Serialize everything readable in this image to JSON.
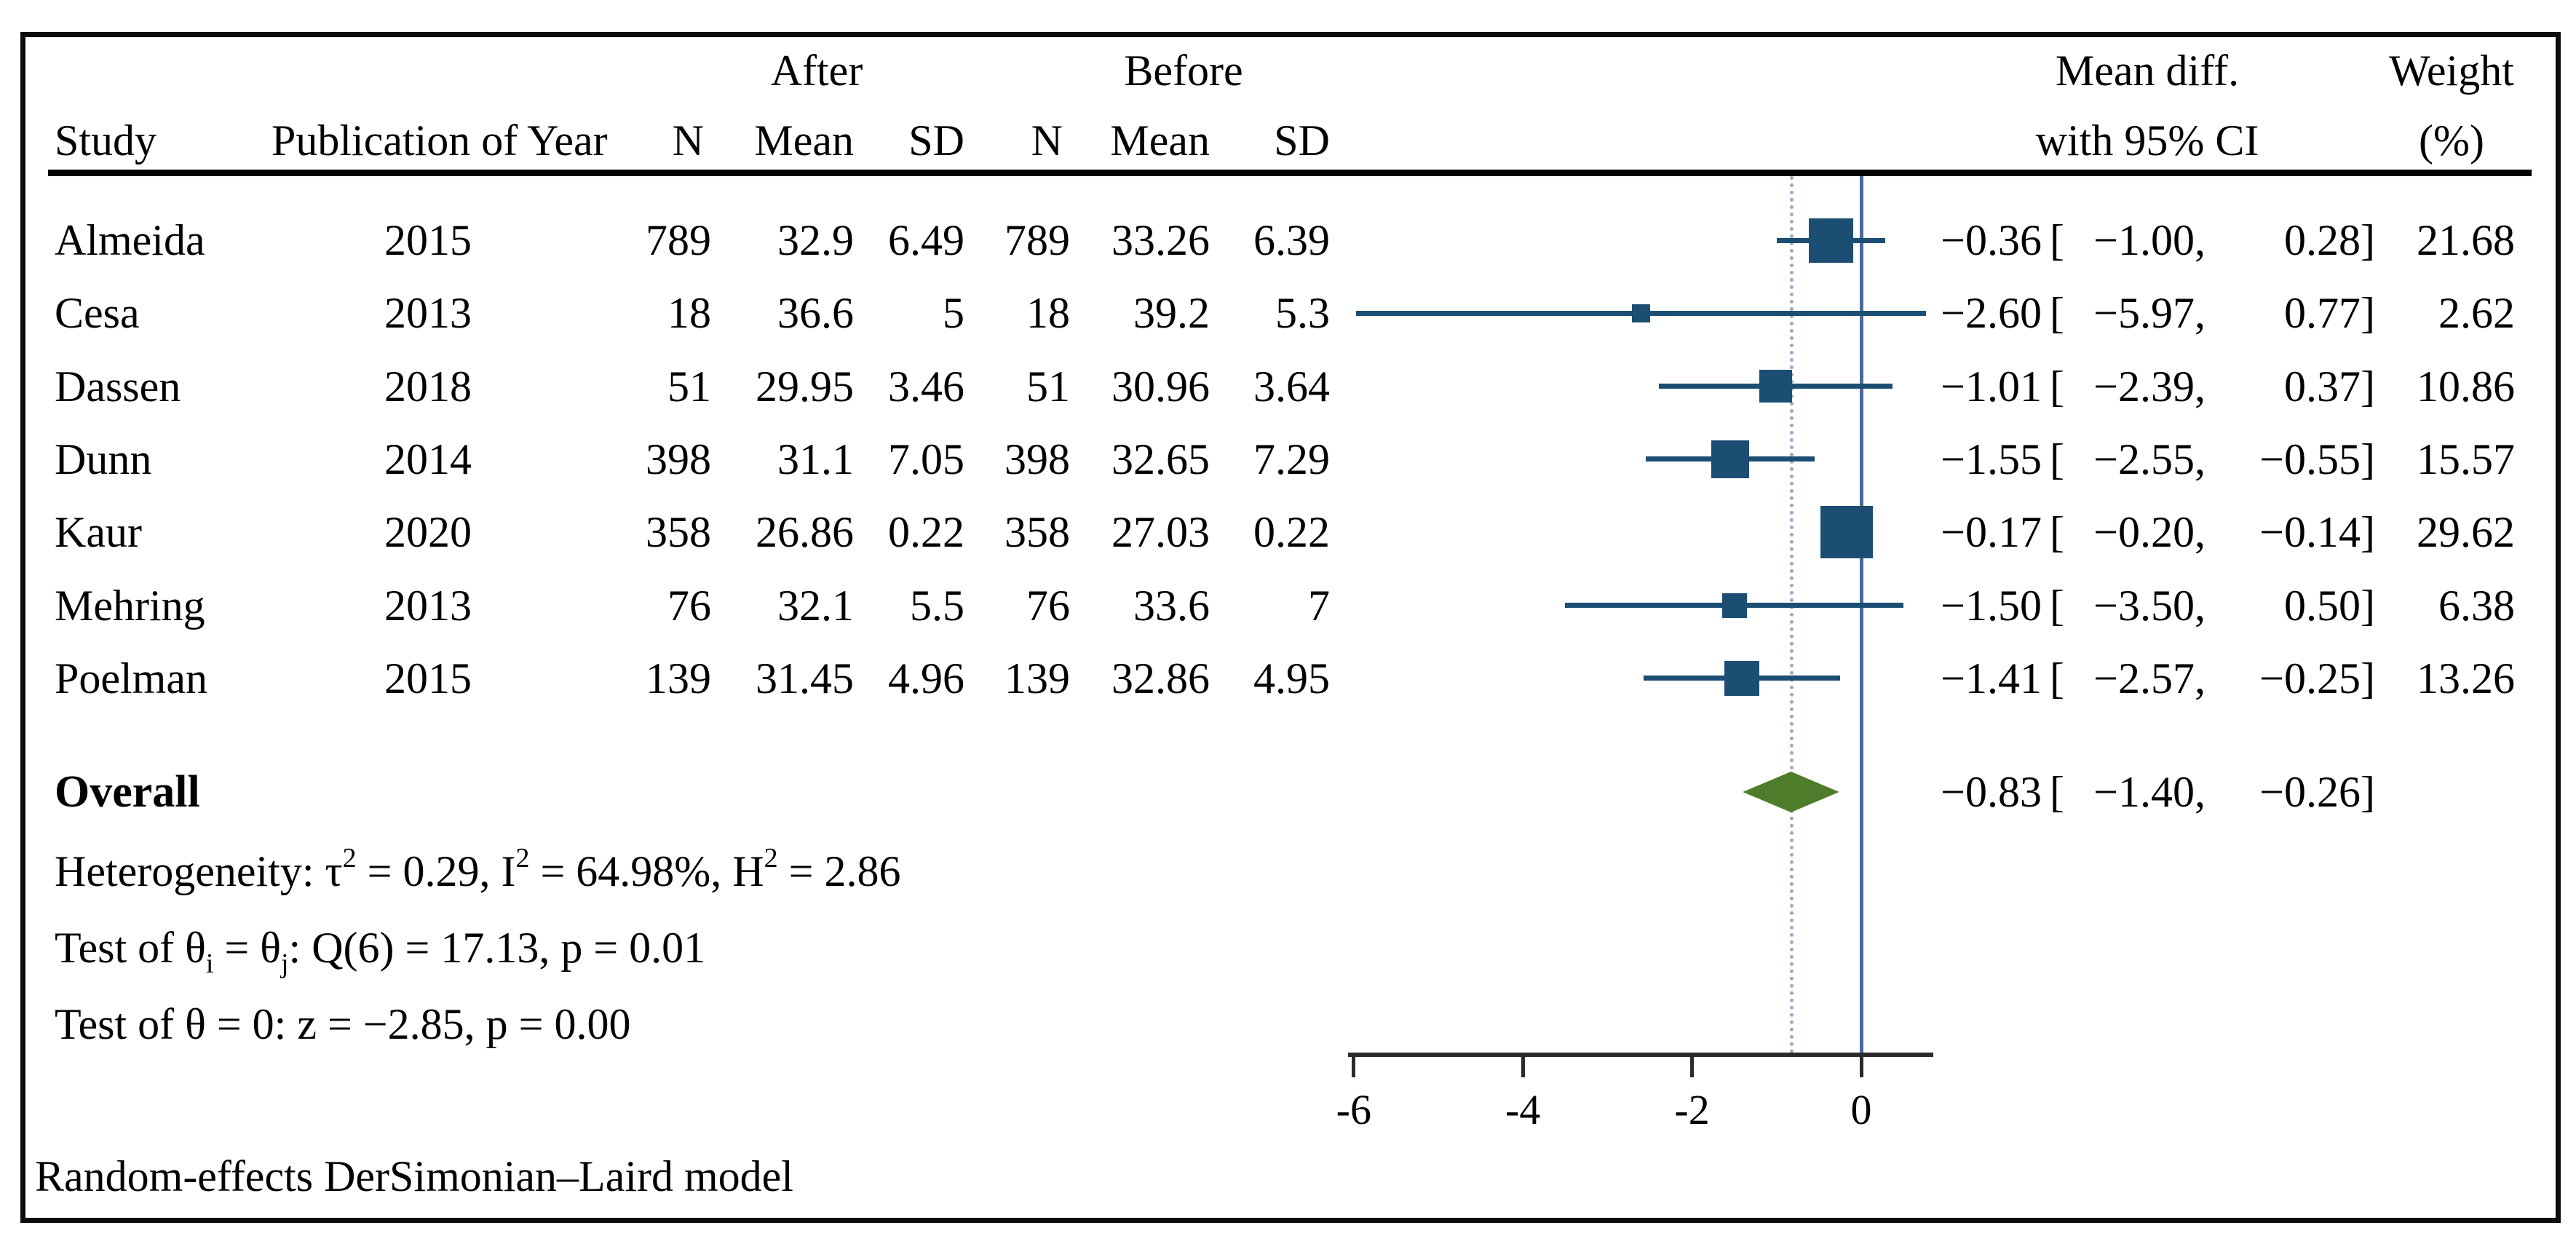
{
  "header": {
    "group_after": "After",
    "group_before": "Before",
    "col_study": "Study",
    "col_year": "Publication of Year",
    "col_n": "N",
    "col_mean": "Mean",
    "col_sd": "SD",
    "col_meandiff_line1": "Mean diff.",
    "col_meandiff_line2": "with 95% CI",
    "col_weight_line1": "Weight",
    "col_weight_line2": "(%)"
  },
  "format": {
    "ci_open": "["
  },
  "colors": {
    "marker": "#1c4e73",
    "ci_line": "#1c4e73",
    "null_line": "#4a6b99",
    "overall_dotted": "#93acc8",
    "diamond": "#4e7c2b",
    "axis": "#2b2b2b",
    "border": "#0d0d0d"
  },
  "chart_data": {
    "type": "scatter",
    "subtype": "forest-plot-meta-analysis",
    "title": "",
    "xlabel": "",
    "xlim": [
      -6.2,
      0.9
    ],
    "x_ticks": [
      {
        "v": -6,
        "label": "-6"
      },
      {
        "v": -4,
        "label": "-4"
      },
      {
        "v": -2,
        "label": "-2"
      },
      {
        "v": 0,
        "label": "0"
      }
    ],
    "null_line_x": 0,
    "overall_dotted_line_x": -0.83,
    "studies": [
      {
        "study": "Almeida",
        "year": "2015",
        "n1": "789",
        "mean1": "32.9",
        "sd1": "6.49",
        "n2": "789",
        "mean2": "33.26",
        "sd2": "6.39",
        "est": -0.36,
        "lo": -1.0,
        "hi": 0.28,
        "est_txt": "−0.36",
        "lo_txt": "−1.00,",
        "hi_txt": "0.28]",
        "weight": "21.68",
        "marker_px": 61
      },
      {
        "study": "Cesa",
        "year": "2013",
        "n1": "18",
        "mean1": "36.6",
        "sd1": "5",
        "n2": "18",
        "mean2": "39.2",
        "sd2": "5.3",
        "est": -2.6,
        "lo": -5.97,
        "hi": 0.77,
        "est_txt": "−2.60",
        "lo_txt": "−5.97,",
        "hi_txt": "0.77]",
        "weight": "2.62",
        "marker_px": 25
      },
      {
        "study": "Dassen",
        "year": "2018",
        "n1": "51",
        "mean1": "29.95",
        "sd1": "3.46",
        "n2": "51",
        "mean2": "30.96",
        "sd2": "3.64",
        "est": -1.01,
        "lo": -2.39,
        "hi": 0.37,
        "est_txt": "−1.01",
        "lo_txt": "−2.39,",
        "hi_txt": "0.37]",
        "weight": "10.86",
        "marker_px": 45
      },
      {
        "study": "Dunn",
        "year": "2014",
        "n1": "398",
        "mean1": "31.1",
        "sd1": "7.05",
        "n2": "398",
        "mean2": "32.65",
        "sd2": "7.29",
        "est": -1.55,
        "lo": -2.55,
        "hi": -0.55,
        "est_txt": "−1.55",
        "lo_txt": "−2.55,",
        "hi_txt": "−0.55]",
        "weight": "15.57",
        "marker_px": 52
      },
      {
        "study": "Kaur",
        "year": "2020",
        "n1": "358",
        "mean1": "26.86",
        "sd1": "0.22",
        "n2": "358",
        "mean2": "27.03",
        "sd2": "0.22",
        "est": -0.17,
        "lo": -0.2,
        "hi": -0.14,
        "est_txt": "−0.17",
        "lo_txt": "−0.20,",
        "hi_txt": "−0.14]",
        "weight": "29.62",
        "marker_px": 72
      },
      {
        "study": "Mehring",
        "year": "2013",
        "n1": "76",
        "mean1": "32.1",
        "sd1": "5.5",
        "n2": "76",
        "mean2": "33.6",
        "sd2": "7",
        "est": -1.5,
        "lo": -3.5,
        "hi": 0.5,
        "est_txt": "−1.50",
        "lo_txt": "−3.50,",
        "hi_txt": "0.50]",
        "weight": "6.38",
        "marker_px": 34
      },
      {
        "study": "Poelman",
        "year": "2015",
        "n1": "139",
        "mean1": "31.45",
        "sd1": "4.96",
        "n2": "139",
        "mean2": "32.86",
        "sd2": "4.95",
        "est": -1.41,
        "lo": -2.57,
        "hi": -0.25,
        "est_txt": "−1.41",
        "lo_txt": "−2.57,",
        "hi_txt": "−0.25]",
        "weight": "13.26",
        "marker_px": 48
      }
    ],
    "overall": {
      "label": "Overall",
      "est": -0.83,
      "lo": -1.4,
      "hi": -0.26,
      "est_txt": "−0.83",
      "lo_txt": "−1.40,",
      "hi_txt": "−0.26]"
    }
  },
  "stats_lines": [
    {
      "segments": [
        {
          "t": "Heterogeneity: τ"
        },
        {
          "t": "2",
          "style": "sup"
        },
        {
          "t": " = 0.29, I"
        },
        {
          "t": "2",
          "style": "sup"
        },
        {
          "t": " = 64.98%, H"
        },
        {
          "t": "2",
          "style": "sup"
        },
        {
          "t": " = 2.86"
        }
      ]
    },
    {
      "segments": [
        {
          "t": "Test of θ"
        },
        {
          "t": "i",
          "style": "sub"
        },
        {
          "t": " = θ"
        },
        {
          "t": "j",
          "style": "sub"
        },
        {
          "t": ": Q(6) = 17.13, p = 0.01"
        }
      ]
    },
    {
      "segments": [
        {
          "t": "Test of θ = 0: z = −2.85, p = 0.00"
        }
      ]
    }
  ],
  "footer": "Random-effects DerSimonian–Laird model"
}
